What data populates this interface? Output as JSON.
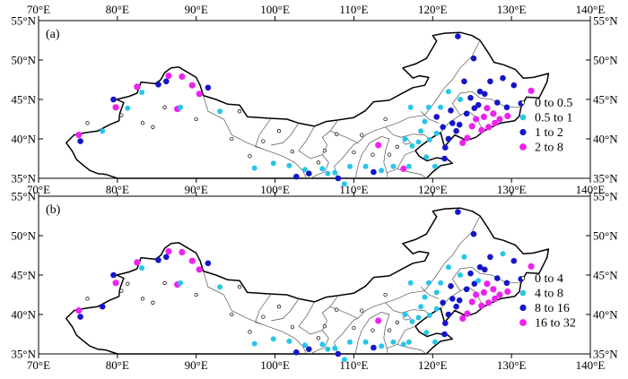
{
  "colors": {
    "class_0": "#ffffff",
    "class_1": "#26c6ea",
    "class_2": "#1515c8",
    "class_3": "#ee22ee",
    "border_outer": "#000000",
    "border_inner": "#555555"
  },
  "axes": {
    "lon_ticks": [
      "70°E",
      "80°E",
      "90°E",
      "100°E",
      "110°E",
      "120°E",
      "130°E",
      "140°E"
    ],
    "lat_ticks": [
      "55°N",
      "50°N",
      "45°N",
      "40°N",
      "35°N"
    ]
  },
  "panels": [
    {
      "tag": "(a)",
      "legend": [
        {
          "label": "0 to 0.5",
          "class": 0
        },
        {
          "label": "0.5 to 1",
          "class": 1
        },
        {
          "label": "1 to 2",
          "class": 2
        },
        {
          "label": "2 to 8",
          "class": 3
        }
      ]
    },
    {
      "tag": "(b)",
      "legend": [
        {
          "label": "0 to 4",
          "class": 0
        },
        {
          "label": "4 to 8",
          "class": 1
        },
        {
          "label": "8 to 16",
          "class": 2
        },
        {
          "label": "16 to 32",
          "class": 3
        }
      ]
    }
  ],
  "chart_data": {
    "type": "map-station-scatter",
    "extent": {
      "lon": [
        70,
        140
      ],
      "lat": [
        35,
        55
      ]
    },
    "stations_lon_lat_class_a_b": [
      [
        75.1,
        40.5,
        3,
        3
      ],
      [
        75.3,
        39.7,
        2,
        2
      ],
      [
        78.1,
        41.0,
        1,
        2
      ],
      [
        76.2,
        42.0,
        0,
        0
      ],
      [
        79.5,
        45.0,
        2,
        2
      ],
      [
        79.8,
        44.0,
        3,
        3
      ],
      [
        80.5,
        43.0,
        0,
        0
      ],
      [
        81.3,
        43.9,
        1,
        0
      ],
      [
        82.5,
        46.6,
        3,
        3
      ],
      [
        83.1,
        45.9,
        1,
        1
      ],
      [
        83.2,
        42.0,
        0,
        0
      ],
      [
        84.5,
        41.5,
        0,
        0
      ],
      [
        85.2,
        46.9,
        2,
        2
      ],
      [
        86.2,
        47.3,
        2,
        2
      ],
      [
        86.5,
        48.0,
        3,
        3
      ],
      [
        86.0,
        44.0,
        0,
        0
      ],
      [
        87.6,
        43.8,
        3,
        3
      ],
      [
        88.2,
        47.9,
        3,
        3
      ],
      [
        88.0,
        44.0,
        1,
        1
      ],
      [
        89.5,
        46.8,
        3,
        3
      ],
      [
        90.4,
        45.7,
        3,
        3
      ],
      [
        90.0,
        42.5,
        0,
        0
      ],
      [
        91.5,
        46.5,
        2,
        2
      ],
      [
        93.0,
        43.5,
        1,
        1
      ],
      [
        94.5,
        40.0,
        0,
        0
      ],
      [
        95.5,
        43.5,
        0,
        0
      ],
      [
        96.8,
        37.8,
        0,
        0
      ],
      [
        97.4,
        36.3,
        1,
        1
      ],
      [
        98.5,
        39.7,
        0,
        0
      ],
      [
        99.8,
        36.9,
        1,
        1
      ],
      [
        100.5,
        41.0,
        0,
        0
      ],
      [
        101.8,
        36.6,
        1,
        1
      ],
      [
        102.2,
        38.4,
        0,
        0
      ],
      [
        102.7,
        35.2,
        2,
        2
      ],
      [
        103.8,
        36.1,
        1,
        1
      ],
      [
        104.3,
        35.6,
        2,
        2
      ],
      [
        105.5,
        37.0,
        0,
        0
      ],
      [
        106.0,
        36.2,
        1,
        1
      ],
      [
        106.3,
        38.5,
        0,
        0
      ],
      [
        106.7,
        35.6,
        1,
        1
      ],
      [
        107.6,
        35.7,
        1,
        1
      ],
      [
        108.0,
        35.0,
        2,
        2
      ],
      [
        107.8,
        40.6,
        0,
        0
      ],
      [
        108.8,
        34.3,
        1,
        1
      ],
      [
        109.5,
        36.5,
        1,
        1
      ],
      [
        110.0,
        38.3,
        0,
        0
      ],
      [
        111.0,
        40.5,
        0,
        0
      ],
      [
        111.5,
        36.5,
        1,
        1
      ],
      [
        112.4,
        38.0,
        0,
        0
      ],
      [
        112.5,
        35.8,
        2,
        2
      ],
      [
        113.1,
        39.2,
        3,
        3
      ],
      [
        113.5,
        36.0,
        1,
        1
      ],
      [
        114.0,
        42.5,
        0,
        0
      ],
      [
        114.5,
        38.0,
        0,
        0
      ],
      [
        115.0,
        36.5,
        1,
        1
      ],
      [
        115.5,
        39.0,
        0,
        0
      ],
      [
        116.3,
        36.2,
        3,
        1
      ],
      [
        116.5,
        40.0,
        1,
        1
      ],
      [
        117.0,
        36.5,
        1,
        1
      ],
      [
        117.4,
        39.1,
        1,
        1
      ],
      [
        117.2,
        44.0,
        1,
        1
      ],
      [
        118.2,
        39.6,
        1,
        1
      ],
      [
        118.5,
        41.0,
        1,
        1
      ],
      [
        119.0,
        42.2,
        1,
        1
      ],
      [
        119.2,
        37.7,
        1,
        1
      ],
      [
        119.5,
        44.0,
        1,
        1
      ],
      [
        119.6,
        39.9,
        1,
        1
      ],
      [
        120.3,
        36.5,
        1,
        1
      ],
      [
        120.5,
        40.7,
        1,
        1
      ],
      [
        120.5,
        42.8,
        2,
        1
      ],
      [
        121.0,
        44.0,
        1,
        1
      ],
      [
        121.3,
        41.5,
        2,
        2
      ],
      [
        121.5,
        37.5,
        2,
        2
      ],
      [
        121.6,
        38.9,
        2,
        2
      ],
      [
        122.0,
        40.0,
        2,
        2
      ],
      [
        122.3,
        43.6,
        2,
        2
      ],
      [
        122.0,
        46.0,
        1,
        1
      ],
      [
        122.5,
        42.0,
        2,
        2
      ],
      [
        123.0,
        41.0,
        2,
        2
      ],
      [
        123.2,
        53.0,
        2,
        2
      ],
      [
        123.4,
        41.8,
        2,
        2
      ],
      [
        123.5,
        45.0,
        1,
        1
      ],
      [
        123.8,
        39.5,
        3,
        3
      ],
      [
        124.0,
        47.3,
        2,
        1
      ],
      [
        124.3,
        43.2,
        2,
        2
      ],
      [
        124.4,
        40.1,
        3,
        3
      ],
      [
        124.8,
        45.2,
        2,
        2
      ],
      [
        125.0,
        41.6,
        3,
        3
      ],
      [
        125.3,
        43.9,
        2,
        2
      ],
      [
        125.2,
        50.2,
        2,
        2
      ],
      [
        125.5,
        42.5,
        3,
        3
      ],
      [
        125.8,
        44.3,
        2,
        1
      ],
      [
        126.0,
        46.0,
        2,
        2
      ],
      [
        126.2,
        41.1,
        3,
        3
      ],
      [
        126.5,
        42.8,
        3,
        3
      ],
      [
        126.6,
        45.7,
        2,
        2
      ],
      [
        126.9,
        43.9,
        3,
        3
      ],
      [
        127.1,
        41.5,
        3,
        3
      ],
      [
        127.3,
        47.3,
        2,
        2
      ],
      [
        127.7,
        43.2,
        3,
        3
      ],
      [
        127.9,
        42.0,
        3,
        3
      ],
      [
        128.2,
        44.6,
        2,
        2
      ],
      [
        128.5,
        42.5,
        3,
        3
      ],
      [
        128.9,
        47.7,
        2,
        1
      ],
      [
        129.4,
        44.0,
        2,
        2
      ],
      [
        129.5,
        42.9,
        3,
        3
      ],
      [
        130.3,
        46.8,
        2,
        2
      ],
      [
        131.2,
        44.5,
        2,
        2
      ],
      [
        132.5,
        46.1,
        3,
        3
      ]
    ]
  }
}
